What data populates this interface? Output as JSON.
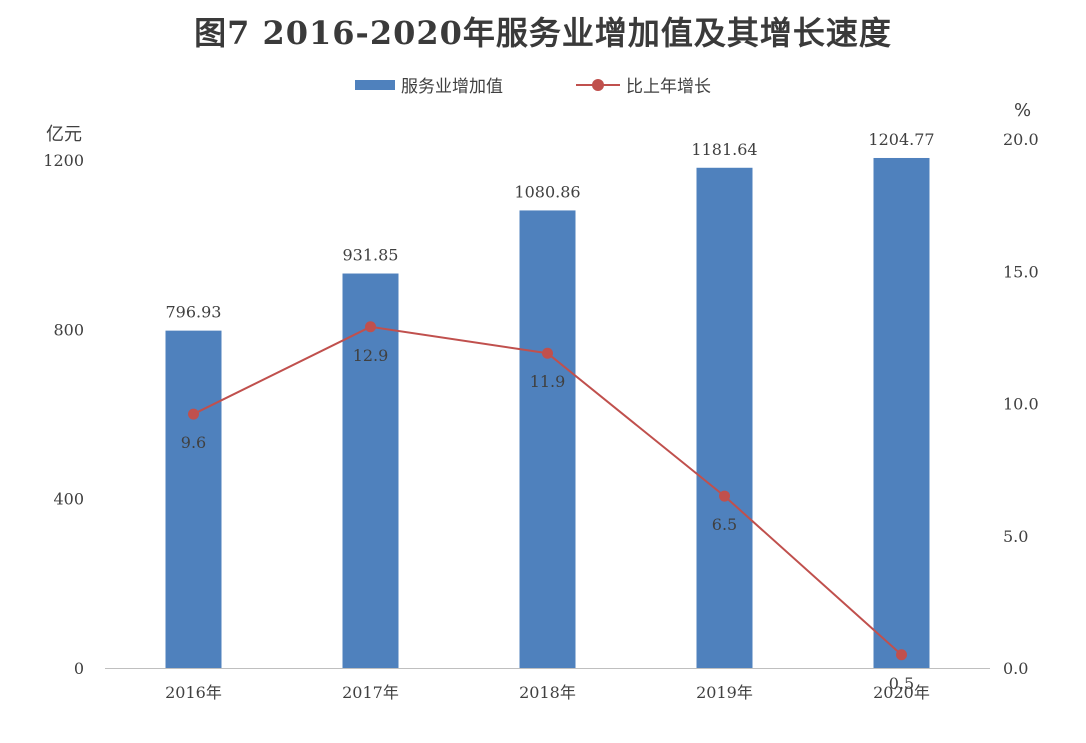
{
  "title": "图7  2016-2020年服务业增加值及其增长速度",
  "colors": {
    "bar": "#4f81bd",
    "line": "#c0504d",
    "axis": "#bfbfbf",
    "text": "#404040"
  },
  "chart_data": {
    "type": "bar+line",
    "categories": [
      "2016年",
      "2017年",
      "2018年",
      "2019年",
      "2020年"
    ],
    "series": [
      {
        "name": "服务业增加值",
        "type": "bar",
        "axis": "left",
        "values": [
          796.93,
          931.85,
          1080.86,
          1181.64,
          1204.77
        ],
        "labels": [
          "796.93",
          "931.85",
          "1080.86",
          "1181.64",
          "1204.77"
        ]
      },
      {
        "name": "比上年增长",
        "type": "line",
        "axis": "right",
        "values": [
          9.6,
          12.9,
          11.9,
          6.5,
          0.5
        ],
        "labels": [
          "9.6",
          "12.9",
          "11.9",
          "6.5",
          "0.5"
        ]
      }
    ],
    "y_left": {
      "unit": "亿元",
      "range": [
        0,
        1200
      ],
      "ticks": [
        "0",
        "400",
        "800",
        "1200"
      ]
    },
    "y_right": {
      "unit": "%",
      "range": [
        0,
        20
      ],
      "ticks": [
        "0.0",
        "5.0",
        "10.0",
        "15.0",
        "20.0"
      ]
    },
    "legend": "top-center",
    "grid": false
  }
}
